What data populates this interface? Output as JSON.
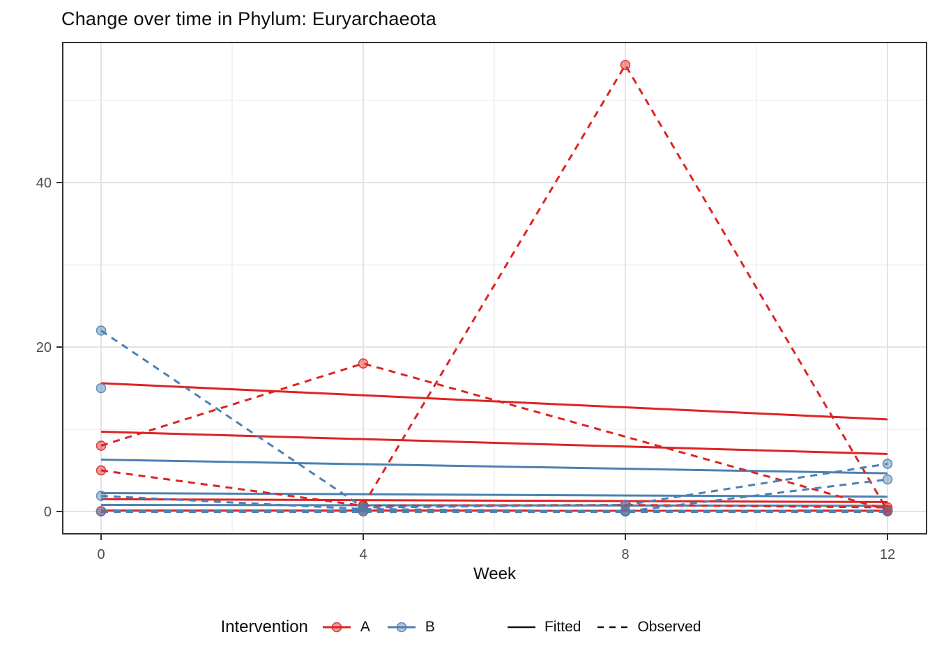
{
  "title": "Change over time in Phylum: Euryarchaeota",
  "legend": {
    "title": "Intervention",
    "group_a": "A",
    "group_b": "B",
    "fitted": "Fitted",
    "observed": "Observed"
  },
  "chart_data": {
    "type": "line",
    "title": "Change over time in Phylum: Euryarchaeota",
    "xlabel": "Week",
    "ylabel": "",
    "xlim": [
      -0.6,
      12.6
    ],
    "ylim": [
      -2.7,
      57
    ],
    "grid": true,
    "legend_position": "bottom",
    "x_ticks": {
      "major": [
        0,
        4,
        8,
        12
      ],
      "minor": [
        2,
        6,
        10
      ]
    },
    "y_ticks": {
      "major": [
        0,
        20,
        40
      ],
      "minor": [
        10,
        30,
        50
      ]
    },
    "colors": {
      "A": "#dd2423",
      "B": "#4c80b2",
      "tick_text": "#4d4d4d",
      "panel_border": "#333333",
      "grid_major": "#e3e3e3",
      "grid_minor": "#f0f0f0"
    },
    "series": [
      {
        "group": "A",
        "style": "fitted",
        "points": [
          [
            0,
            15.6
          ],
          [
            12,
            11.2
          ]
        ]
      },
      {
        "group": "A",
        "style": "fitted",
        "points": [
          [
            0,
            9.7
          ],
          [
            12,
            7.0
          ]
        ]
      },
      {
        "group": "A",
        "style": "fitted",
        "points": [
          [
            0,
            1.5
          ],
          [
            12,
            1.15
          ]
        ]
      },
      {
        "group": "A",
        "style": "fitted",
        "points": [
          [
            0,
            0.12
          ],
          [
            12,
            0.1
          ]
        ]
      },
      {
        "group": "B",
        "style": "fitted",
        "points": [
          [
            0,
            6.3
          ],
          [
            12,
            4.65
          ]
        ]
      },
      {
        "group": "B",
        "style": "fitted",
        "points": [
          [
            0,
            2.25
          ],
          [
            12,
            1.8
          ]
        ]
      },
      {
        "group": "B",
        "style": "fitted",
        "points": [
          [
            0,
            0.8
          ],
          [
            12,
            0.7
          ]
        ]
      },
      {
        "group": "A",
        "style": "observed",
        "points": [
          [
            0,
            8
          ],
          [
            4,
            18
          ],
          [
            12,
            0.2
          ]
        ]
      },
      {
        "group": "A",
        "style": "observed",
        "points": [
          [
            0,
            5
          ],
          [
            4,
            0.7
          ],
          [
            8,
            0.8
          ],
          [
            12,
            0.5
          ]
        ]
      },
      {
        "group": "A",
        "style": "observed",
        "points": [
          [
            4,
            0.75
          ],
          [
            8,
            54.3
          ],
          [
            12,
            0.1
          ]
        ]
      },
      {
        "group": "A",
        "style": "observed",
        "points": [
          [
            0,
            0.05
          ],
          [
            4,
            0.05
          ],
          [
            8,
            0.05
          ],
          [
            12,
            0.05
          ]
        ]
      },
      {
        "group": "B",
        "style": "observed",
        "points": [
          [
            0,
            22
          ],
          [
            4,
            0.5
          ],
          [
            8,
            0.8
          ],
          [
            12,
            5.8
          ]
        ]
      },
      {
        "group": "B",
        "style": "observed",
        "points": [
          [
            0,
            1.9
          ],
          [
            4,
            0.3
          ],
          [
            8,
            0
          ],
          [
            12,
            3.9
          ]
        ]
      },
      {
        "group": "B",
        "style": "observed",
        "points": [
          [
            0,
            15
          ]
        ]
      },
      {
        "group": "B",
        "style": "observed",
        "w": 4.2,
        "points": [
          [
            0,
            0
          ],
          [
            4,
            0
          ],
          [
            8,
            0
          ],
          [
            12,
            0
          ]
        ]
      }
    ]
  }
}
